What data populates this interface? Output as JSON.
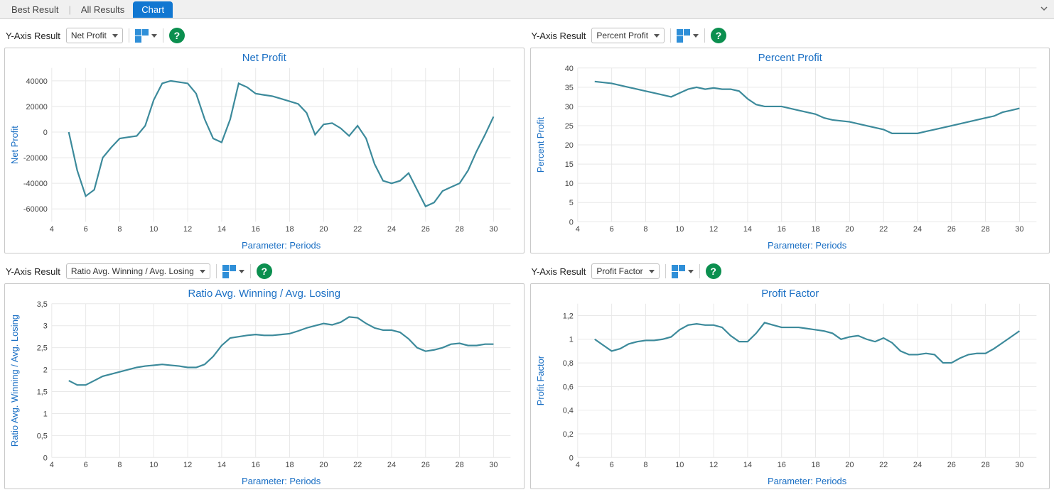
{
  "tabs": {
    "items": [
      "Best Result",
      "All Results",
      "Chart"
    ],
    "active_index": 2
  },
  "toolbar": {
    "y_axis_label": "Y-Axis Result",
    "help_glyph": "?"
  },
  "panels": [
    {
      "select_value": "Net Profit",
      "chart": {
        "type": "line",
        "title": "Net Profit",
        "xlabel": "Parameter: Periods",
        "ylabel": "Net Profit",
        "xlim": [
          4,
          31
        ],
        "ylim": [
          -70000,
          50000
        ],
        "xticks": [
          4,
          6,
          8,
          10,
          12,
          14,
          16,
          18,
          20,
          22,
          24,
          26,
          28,
          30
        ],
        "yticks": [
          -60000,
          -40000,
          -20000,
          0,
          20000,
          40000
        ],
        "line_color": "#3c8a9b",
        "grid_color": "#e8e8e8",
        "axis_color": "#bdbdbd",
        "title_color": "#1a6fc4",
        "background_color": "#ffffff",
        "title_fontsize": 15,
        "tick_fontsize": 11,
        "line_width": 2.2,
        "data": [
          [
            5,
            0
          ],
          [
            5.5,
            -30000
          ],
          [
            6,
            -50000
          ],
          [
            6.5,
            -45000
          ],
          [
            7,
            -20000
          ],
          [
            7.5,
            -12000
          ],
          [
            8,
            -5000
          ],
          [
            8.5,
            -4000
          ],
          [
            9,
            -3000
          ],
          [
            9.5,
            5000
          ],
          [
            10,
            25000
          ],
          [
            10.5,
            38000
          ],
          [
            11,
            40000
          ],
          [
            11.5,
            39000
          ],
          [
            12,
            38000
          ],
          [
            12.5,
            30000
          ],
          [
            13,
            10000
          ],
          [
            13.5,
            -5000
          ],
          [
            14,
            -8000
          ],
          [
            14.5,
            10000
          ],
          [
            15,
            38000
          ],
          [
            15.5,
            35000
          ],
          [
            16,
            30000
          ],
          [
            16.5,
            29000
          ],
          [
            17,
            28000
          ],
          [
            17.5,
            26000
          ],
          [
            18,
            24000
          ],
          [
            18.5,
            22000
          ],
          [
            19,
            15000
          ],
          [
            19.5,
            -2000
          ],
          [
            20,
            6000
          ],
          [
            20.5,
            7000
          ],
          [
            21,
            3000
          ],
          [
            21.5,
            -3000
          ],
          [
            22,
            5000
          ],
          [
            22.5,
            -5000
          ],
          [
            23,
            -25000
          ],
          [
            23.5,
            -38000
          ],
          [
            24,
            -40000
          ],
          [
            24.5,
            -38000
          ],
          [
            25,
            -32000
          ],
          [
            25.5,
            -45000
          ],
          [
            26,
            -58000
          ],
          [
            26.5,
            -55000
          ],
          [
            27,
            -46000
          ],
          [
            27.5,
            -43000
          ],
          [
            28,
            -40000
          ],
          [
            28.5,
            -30000
          ],
          [
            29,
            -15000
          ],
          [
            29.5,
            -2000
          ],
          [
            30,
            12000
          ]
        ]
      }
    },
    {
      "select_value": "Percent Profit",
      "chart": {
        "type": "line",
        "title": "Percent Profit",
        "xlabel": "Parameter: Periods",
        "ylabel": "Percent Profit",
        "xlim": [
          4,
          31
        ],
        "ylim": [
          0,
          40
        ],
        "xticks": [
          4,
          6,
          8,
          10,
          12,
          14,
          16,
          18,
          20,
          22,
          24,
          26,
          28,
          30
        ],
        "yticks": [
          0,
          5,
          10,
          15,
          20,
          25,
          30,
          35,
          40
        ],
        "line_color": "#3c8a9b",
        "grid_color": "#e8e8e8",
        "axis_color": "#bdbdbd",
        "title_color": "#1a6fc4",
        "background_color": "#ffffff",
        "title_fontsize": 15,
        "tick_fontsize": 11,
        "line_width": 2.2,
        "data": [
          [
            5,
            36.5
          ],
          [
            6,
            36
          ],
          [
            7,
            35
          ],
          [
            8,
            34
          ],
          [
            8.5,
            33.5
          ],
          [
            9,
            33
          ],
          [
            9.5,
            32.5
          ],
          [
            10,
            33.5
          ],
          [
            10.5,
            34.5
          ],
          [
            11,
            35
          ],
          [
            11.5,
            34.5
          ],
          [
            12,
            34.8
          ],
          [
            12.5,
            34.5
          ],
          [
            13,
            34.5
          ],
          [
            13.5,
            34
          ],
          [
            14,
            32
          ],
          [
            14.5,
            30.5
          ],
          [
            15,
            30
          ],
          [
            15.5,
            30
          ],
          [
            16,
            30
          ],
          [
            17,
            29
          ],
          [
            18,
            28
          ],
          [
            18.5,
            27
          ],
          [
            19,
            26.5
          ],
          [
            20,
            26
          ],
          [
            20.5,
            25.5
          ],
          [
            21,
            25
          ],
          [
            22,
            24
          ],
          [
            22.5,
            23
          ],
          [
            23,
            23
          ],
          [
            24,
            23
          ],
          [
            24.5,
            23.5
          ],
          [
            25,
            24
          ],
          [
            26,
            25
          ],
          [
            27,
            26
          ],
          [
            28,
            27
          ],
          [
            28.5,
            27.5
          ],
          [
            29,
            28.5
          ],
          [
            29.5,
            29
          ],
          [
            30,
            29.5
          ]
        ]
      }
    },
    {
      "select_value": "Ratio Avg. Winning / Avg. Losing",
      "chart": {
        "type": "line",
        "title": "Ratio Avg. Winning / Avg. Losing",
        "xlabel": "Parameter: Periods",
        "ylabel": "Ratio Avg. Winning / Avg. Losing",
        "xlim": [
          4,
          31
        ],
        "ylim": [
          0,
          3.5
        ],
        "xticks": [
          4,
          6,
          8,
          10,
          12,
          14,
          16,
          18,
          20,
          22,
          24,
          26,
          28,
          30
        ],
        "yticks": [
          0,
          0.5,
          1,
          1.5,
          2,
          2.5,
          3,
          3.5
        ],
        "ytick_format": "decimal-comma",
        "line_color": "#3c8a9b",
        "grid_color": "#e8e8e8",
        "axis_color": "#bdbdbd",
        "title_color": "#1a6fc4",
        "background_color": "#ffffff",
        "title_fontsize": 15,
        "tick_fontsize": 11,
        "line_width": 2.2,
        "data": [
          [
            5,
            1.75
          ],
          [
            5.5,
            1.65
          ],
          [
            6,
            1.65
          ],
          [
            6.5,
            1.75
          ],
          [
            7,
            1.85
          ],
          [
            7.5,
            1.9
          ],
          [
            8,
            1.95
          ],
          [
            8.5,
            2.0
          ],
          [
            9,
            2.05
          ],
          [
            9.5,
            2.08
          ],
          [
            10,
            2.1
          ],
          [
            10.5,
            2.12
          ],
          [
            11,
            2.1
          ],
          [
            11.5,
            2.08
          ],
          [
            12,
            2.05
          ],
          [
            12.5,
            2.05
          ],
          [
            13,
            2.12
          ],
          [
            13.5,
            2.3
          ],
          [
            14,
            2.55
          ],
          [
            14.5,
            2.72
          ],
          [
            15,
            2.75
          ],
          [
            15.5,
            2.78
          ],
          [
            16,
            2.8
          ],
          [
            16.5,
            2.78
          ],
          [
            17,
            2.78
          ],
          [
            17.5,
            2.8
          ],
          [
            18,
            2.82
          ],
          [
            18.5,
            2.88
          ],
          [
            19,
            2.95
          ],
          [
            19.5,
            3.0
          ],
          [
            20,
            3.05
          ],
          [
            20.5,
            3.02
          ],
          [
            21,
            3.08
          ],
          [
            21.5,
            3.2
          ],
          [
            22,
            3.18
          ],
          [
            22.5,
            3.05
          ],
          [
            23,
            2.95
          ],
          [
            23.5,
            2.9
          ],
          [
            24,
            2.9
          ],
          [
            24.5,
            2.85
          ],
          [
            25,
            2.7
          ],
          [
            25.5,
            2.5
          ],
          [
            26,
            2.42
          ],
          [
            26.5,
            2.45
          ],
          [
            27,
            2.5
          ],
          [
            27.5,
            2.58
          ],
          [
            28,
            2.6
          ],
          [
            28.5,
            2.55
          ],
          [
            29,
            2.55
          ],
          [
            29.5,
            2.58
          ],
          [
            30,
            2.58
          ]
        ]
      }
    },
    {
      "select_value": "Profit Factor",
      "chart": {
        "type": "line",
        "title": "Profit Factor",
        "xlabel": "Parameter: Periods",
        "ylabel": "Profit Factor",
        "xlim": [
          4,
          31
        ],
        "ylim": [
          0,
          1.3
        ],
        "xticks": [
          4,
          6,
          8,
          10,
          12,
          14,
          16,
          18,
          20,
          22,
          24,
          26,
          28,
          30
        ],
        "yticks": [
          0,
          0.2,
          0.4,
          0.6,
          0.8,
          1,
          1.2
        ],
        "ytick_format": "decimal-comma",
        "line_color": "#3c8a9b",
        "grid_color": "#e8e8e8",
        "axis_color": "#bdbdbd",
        "title_color": "#1a6fc4",
        "background_color": "#ffffff",
        "title_fontsize": 15,
        "tick_fontsize": 11,
        "line_width": 2.2,
        "data": [
          [
            5,
            1.0
          ],
          [
            5.5,
            0.95
          ],
          [
            6,
            0.9
          ],
          [
            6.5,
            0.92
          ],
          [
            7,
            0.96
          ],
          [
            7.5,
            0.98
          ],
          [
            8,
            0.99
          ],
          [
            8.5,
            0.99
          ],
          [
            9,
            1.0
          ],
          [
            9.5,
            1.02
          ],
          [
            10,
            1.08
          ],
          [
            10.5,
            1.12
          ],
          [
            11,
            1.13
          ],
          [
            11.5,
            1.12
          ],
          [
            12,
            1.12
          ],
          [
            12.5,
            1.1
          ],
          [
            13,
            1.03
          ],
          [
            13.5,
            0.98
          ],
          [
            14,
            0.98
          ],
          [
            14.5,
            1.05
          ],
          [
            15,
            1.14
          ],
          [
            15.5,
            1.12
          ],
          [
            16,
            1.1
          ],
          [
            16.5,
            1.1
          ],
          [
            17,
            1.1
          ],
          [
            17.5,
            1.09
          ],
          [
            18,
            1.08
          ],
          [
            18.5,
            1.07
          ],
          [
            19,
            1.05
          ],
          [
            19.5,
            1.0
          ],
          [
            20,
            1.02
          ],
          [
            20.5,
            1.03
          ],
          [
            21,
            1.0
          ],
          [
            21.5,
            0.98
          ],
          [
            22,
            1.01
          ],
          [
            22.5,
            0.97
          ],
          [
            23,
            0.9
          ],
          [
            23.5,
            0.87
          ],
          [
            24,
            0.87
          ],
          [
            24.5,
            0.88
          ],
          [
            25,
            0.87
          ],
          [
            25.5,
            0.8
          ],
          [
            26,
            0.8
          ],
          [
            26.5,
            0.84
          ],
          [
            27,
            0.87
          ],
          [
            27.5,
            0.88
          ],
          [
            28,
            0.88
          ],
          [
            28.5,
            0.92
          ],
          [
            29,
            0.97
          ],
          [
            29.5,
            1.02
          ],
          [
            30,
            1.07
          ]
        ]
      }
    }
  ]
}
